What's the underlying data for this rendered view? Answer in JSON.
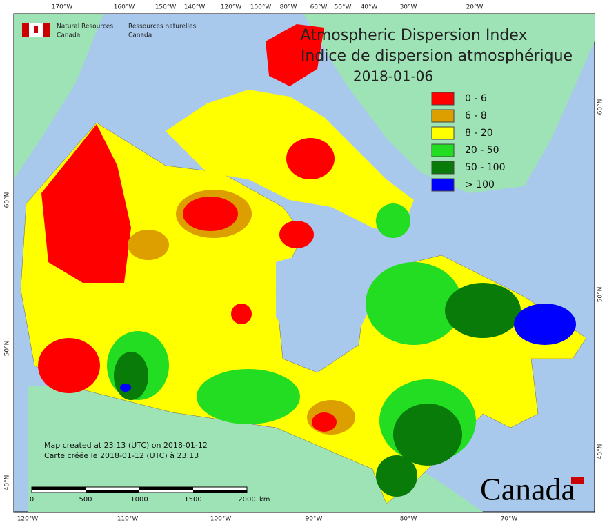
{
  "header": {
    "org_en": "Natural Resources",
    "org_en_2": "Canada",
    "org_fr": "Ressources naturelles",
    "org_fr_2": "Canada"
  },
  "title": {
    "en": "Atmospheric Dispersion Index",
    "fr": "Indice de dispersion atmosphérique",
    "date": "2018-01-06"
  },
  "legend": [
    {
      "label": "0 - 6",
      "color": "#ff0000"
    },
    {
      "label": "6 - 8",
      "color": "#dd9f00"
    },
    {
      "label": "8 - 20",
      "color": "#ffff00"
    },
    {
      "label": "20 - 50",
      "color": "#22dd22"
    },
    {
      "label": "50 - 100",
      "color": "#087b08"
    },
    {
      "label": "> 100",
      "color": "#0000ff"
    }
  ],
  "graticule": {
    "top": [
      "170°W",
      "160°W",
      "150°W",
      "140°W",
      "120°W",
      "100°W",
      "80°W",
      "60°W",
      "50°W",
      "40°W",
      "30°W",
      "20°W"
    ],
    "bottom": [
      "120°W",
      "110°W",
      "100°W",
      "90°W",
      "80°W",
      "70°W"
    ],
    "left": [
      "60°N",
      "50°N",
      "40°N"
    ],
    "right": [
      "60°N",
      "50°N",
      "40°N"
    ]
  },
  "footer": {
    "created_en": "Map created at 23:13 (UTC) on 2018-01-12",
    "created_fr": "Carte créée le 2018-01-12 (UTC) à 23:13"
  },
  "scale": {
    "labels": [
      "0",
      "500",
      "1000",
      "1500",
      "2000"
    ],
    "unit": "km"
  },
  "wordmark": "Canada"
}
